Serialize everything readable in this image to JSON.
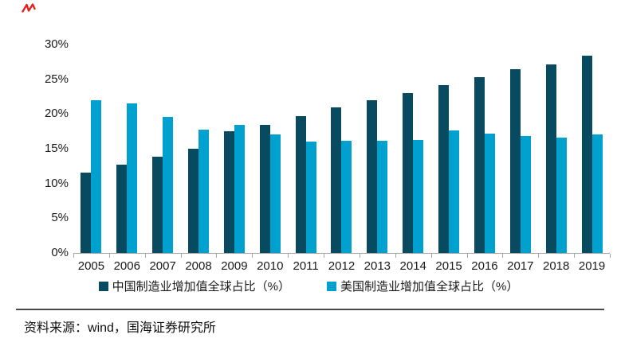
{
  "decor": {
    "red_mark_color": "#e2241d"
  },
  "chart_data": {
    "type": "bar",
    "title": "",
    "categories": [
      "2005",
      "2006",
      "2007",
      "2008",
      "2009",
      "2010",
      "2011",
      "2012",
      "2013",
      "2014",
      "2015",
      "2016",
      "2017",
      "2018",
      "2019"
    ],
    "series": [
      {
        "name": "中国制造业增加值全球占比（%）",
        "color": "#084b61",
        "values": [
          11.6,
          12.7,
          13.9,
          15.0,
          17.5,
          18.4,
          19.7,
          20.9,
          22.0,
          23.0,
          24.2,
          25.3,
          26.4,
          27.1,
          28.4
        ]
      },
      {
        "name": "美国制造业增加值全球占比（%）",
        "color": "#00a1cf",
        "values": [
          22.0,
          21.5,
          19.6,
          17.7,
          18.4,
          17.1,
          16.0,
          16.1,
          16.2,
          16.3,
          17.6,
          17.2,
          16.8,
          16.6,
          17.1
        ]
      }
    ],
    "xlabel": "",
    "ylabel": "",
    "ylim": [
      0,
      30
    ],
    "ytick_step": 5,
    "ytick_labels": [
      "0%",
      "5%",
      "10%",
      "15%",
      "20%",
      "25%",
      "30%"
    ],
    "grid": false,
    "legend_position": "bottom"
  },
  "footer": {
    "prefix": "资料来源：",
    "wind": "wind",
    "suffix": "，国海证券研究所"
  }
}
